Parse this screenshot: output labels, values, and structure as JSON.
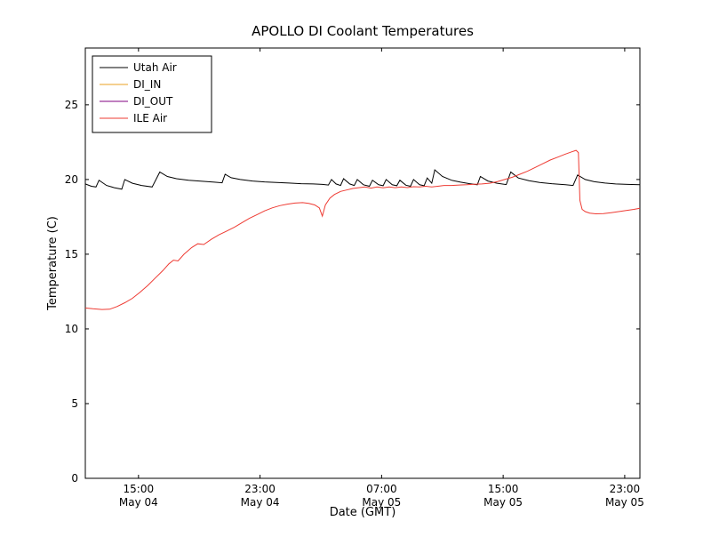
{
  "chart_data": {
    "type": "line",
    "title": "APOLLO DI Coolant Temperatures",
    "xlabel": "Date (GMT)",
    "ylabel": "Temperature (C)",
    "x_unit": "hours since May 04 00:00 GMT",
    "xlim": [
      11.5,
      48
    ],
    "ylim": [
      0,
      28.8
    ],
    "grid": false,
    "y_ticks": [
      0,
      5,
      10,
      15,
      20,
      25
    ],
    "x_ticks": [
      {
        "x": 15,
        "time": "15:00",
        "date": "May 04"
      },
      {
        "x": 23,
        "time": "23:00",
        "date": "May 04"
      },
      {
        "x": 31,
        "time": "07:00",
        "date": "May 05"
      },
      {
        "x": 39,
        "time": "15:00",
        "date": "May 05"
      },
      {
        "x": 47,
        "time": "23:00",
        "date": "May 05"
      }
    ],
    "legend": {
      "position": "upper-left"
    },
    "series": [
      {
        "name": "Utah Air",
        "color": "#000000",
        "points": [
          [
            11.5,
            19.7
          ],
          [
            11.9,
            19.55
          ],
          [
            12.2,
            19.5
          ],
          [
            12.4,
            19.95
          ],
          [
            12.9,
            19.6
          ],
          [
            13.4,
            19.45
          ],
          [
            13.9,
            19.35
          ],
          [
            14.1,
            20.0
          ],
          [
            14.6,
            19.75
          ],
          [
            15.2,
            19.6
          ],
          [
            15.9,
            19.5
          ],
          [
            16.4,
            20.5
          ],
          [
            16.9,
            20.2
          ],
          [
            17.5,
            20.05
          ],
          [
            18.3,
            19.95
          ],
          [
            19.2,
            19.88
          ],
          [
            20.0,
            19.82
          ],
          [
            20.5,
            19.78
          ],
          [
            20.7,
            20.35
          ],
          [
            21.1,
            20.12
          ],
          [
            21.7,
            20.0
          ],
          [
            22.5,
            19.9
          ],
          [
            23.3,
            19.84
          ],
          [
            24.1,
            19.8
          ],
          [
            24.9,
            19.76
          ],
          [
            25.7,
            19.72
          ],
          [
            26.5,
            19.7
          ],
          [
            27.1,
            19.67
          ],
          [
            27.5,
            19.63
          ],
          [
            27.7,
            20.0
          ],
          [
            28.0,
            19.7
          ],
          [
            28.3,
            19.6
          ],
          [
            28.5,
            20.05
          ],
          [
            28.9,
            19.7
          ],
          [
            29.2,
            19.6
          ],
          [
            29.4,
            20.0
          ],
          [
            29.8,
            19.65
          ],
          [
            30.2,
            19.55
          ],
          [
            30.4,
            19.95
          ],
          [
            30.8,
            19.65
          ],
          [
            31.1,
            19.58
          ],
          [
            31.3,
            20.0
          ],
          [
            31.7,
            19.65
          ],
          [
            32.0,
            19.58
          ],
          [
            32.2,
            19.95
          ],
          [
            32.6,
            19.62
          ],
          [
            32.9,
            19.55
          ],
          [
            33.1,
            20.0
          ],
          [
            33.5,
            19.65
          ],
          [
            33.8,
            19.58
          ],
          [
            34.0,
            20.1
          ],
          [
            34.3,
            19.75
          ],
          [
            34.5,
            20.65
          ],
          [
            35.0,
            20.2
          ],
          [
            35.6,
            19.95
          ],
          [
            36.2,
            19.82
          ],
          [
            36.8,
            19.72
          ],
          [
            37.3,
            19.65
          ],
          [
            37.5,
            20.2
          ],
          [
            38.0,
            19.9
          ],
          [
            38.6,
            19.75
          ],
          [
            39.2,
            19.66
          ],
          [
            39.5,
            20.5
          ],
          [
            40.0,
            20.1
          ],
          [
            40.7,
            19.92
          ],
          [
            41.4,
            19.8
          ],
          [
            42.2,
            19.72
          ],
          [
            43.0,
            19.66
          ],
          [
            43.6,
            19.6
          ],
          [
            43.9,
            20.3
          ],
          [
            44.4,
            20.0
          ],
          [
            45.0,
            19.85
          ],
          [
            45.7,
            19.76
          ],
          [
            46.4,
            19.7
          ],
          [
            47.2,
            19.67
          ],
          [
            48.0,
            19.65
          ]
        ]
      },
      {
        "name": "DI_IN",
        "color": "#eaa221",
        "points": []
      },
      {
        "name": "DI_OUT",
        "color": "#800080",
        "points": []
      },
      {
        "name": "ILE Air",
        "color": "#ee3b33",
        "points": [
          [
            11.5,
            11.4
          ],
          [
            12.0,
            11.35
          ],
          [
            12.6,
            11.3
          ],
          [
            13.1,
            11.32
          ],
          [
            13.6,
            11.5
          ],
          [
            14.1,
            11.75
          ],
          [
            14.6,
            12.05
          ],
          [
            15.1,
            12.45
          ],
          [
            15.6,
            12.9
          ],
          [
            16.1,
            13.4
          ],
          [
            16.6,
            13.9
          ],
          [
            17.0,
            14.35
          ],
          [
            17.3,
            14.6
          ],
          [
            17.6,
            14.55
          ],
          [
            18.0,
            15.0
          ],
          [
            18.5,
            15.45
          ],
          [
            18.9,
            15.7
          ],
          [
            19.3,
            15.65
          ],
          [
            19.8,
            16.0
          ],
          [
            20.3,
            16.3
          ],
          [
            20.8,
            16.55
          ],
          [
            21.3,
            16.8
          ],
          [
            21.8,
            17.1
          ],
          [
            22.3,
            17.4
          ],
          [
            22.8,
            17.65
          ],
          [
            23.3,
            17.9
          ],
          [
            23.8,
            18.1
          ],
          [
            24.3,
            18.25
          ],
          [
            24.8,
            18.35
          ],
          [
            25.3,
            18.42
          ],
          [
            25.8,
            18.45
          ],
          [
            26.2,
            18.4
          ],
          [
            26.6,
            18.3
          ],
          [
            26.9,
            18.1
          ],
          [
            27.1,
            17.55
          ],
          [
            27.3,
            18.3
          ],
          [
            27.6,
            18.75
          ],
          [
            27.9,
            19.0
          ],
          [
            28.3,
            19.2
          ],
          [
            28.7,
            19.3
          ],
          [
            29.1,
            19.4
          ],
          [
            29.5,
            19.45
          ],
          [
            29.9,
            19.5
          ],
          [
            30.3,
            19.42
          ],
          [
            30.7,
            19.5
          ],
          [
            31.1,
            19.44
          ],
          [
            31.5,
            19.5
          ],
          [
            31.9,
            19.45
          ],
          [
            32.3,
            19.5
          ],
          [
            32.7,
            19.46
          ],
          [
            33.1,
            19.52
          ],
          [
            33.5,
            19.5
          ],
          [
            33.9,
            19.55
          ],
          [
            34.3,
            19.5
          ],
          [
            34.7,
            19.55
          ],
          [
            35.1,
            19.6
          ],
          [
            35.6,
            19.6
          ],
          [
            36.1,
            19.63
          ],
          [
            36.6,
            19.65
          ],
          [
            37.1,
            19.68
          ],
          [
            37.6,
            19.7
          ],
          [
            38.1,
            19.75
          ],
          [
            38.6,
            19.85
          ],
          [
            39.1,
            20.0
          ],
          [
            39.6,
            20.15
          ],
          [
            40.1,
            20.35
          ],
          [
            40.6,
            20.55
          ],
          [
            41.1,
            20.8
          ],
          [
            41.6,
            21.05
          ],
          [
            42.1,
            21.3
          ],
          [
            42.6,
            21.5
          ],
          [
            43.1,
            21.7
          ],
          [
            43.5,
            21.85
          ],
          [
            43.8,
            21.95
          ],
          [
            43.95,
            21.8
          ],
          [
            44.05,
            18.6
          ],
          [
            44.2,
            18.0
          ],
          [
            44.4,
            17.85
          ],
          [
            44.7,
            17.75
          ],
          [
            45.1,
            17.7
          ],
          [
            45.6,
            17.72
          ],
          [
            46.1,
            17.78
          ],
          [
            46.6,
            17.85
          ],
          [
            47.1,
            17.92
          ],
          [
            47.6,
            18.0
          ],
          [
            48.0,
            18.08
          ]
        ]
      }
    ]
  }
}
